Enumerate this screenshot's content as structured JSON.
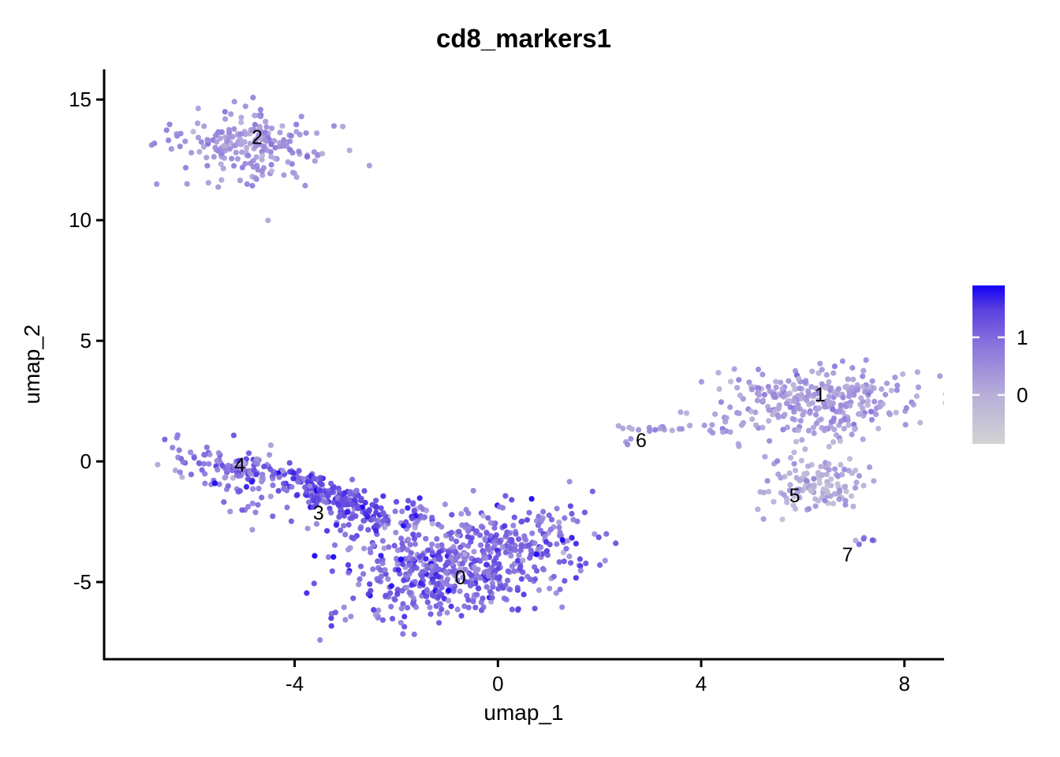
{
  "chart_data": {
    "type": "scatter",
    "title": "cd8_markers1",
    "xlabel": "umap_1",
    "ylabel": "umap_2",
    "xlim": [
      -7.75,
      8.78
    ],
    "ylim": [
      -8.2,
      16.25
    ],
    "x_ticks": [
      -4,
      0,
      4,
      8
    ],
    "y_ticks": [
      15,
      10,
      5,
      0,
      -5
    ],
    "grid": false,
    "legend_position": "right",
    "colorbar": {
      "vmin": -0.85,
      "vmax": 1.9,
      "ticks": [
        1,
        0
      ],
      "low_color": "#D3D3D3",
      "high_color": "#1400F5"
    },
    "palette_stops": [
      [
        0,
        "#D3D3D3"
      ],
      [
        0.31,
        "#B7AED9"
      ],
      [
        0.62,
        "#8B75DC"
      ],
      [
        0.85,
        "#5A3FE0"
      ],
      [
        1,
        "#1400F5"
      ]
    ],
    "cluster_labels": [
      {
        "text": "0",
        "x": -0.74,
        "y": -4.8
      },
      {
        "text": "1",
        "x": 6.34,
        "y": 2.78
      },
      {
        "text": "2",
        "x": -4.74,
        "y": 13.46
      },
      {
        "text": "3",
        "x": -3.53,
        "y": -2.12
      },
      {
        "text": "4",
        "x": -5.08,
        "y": -0.13
      },
      {
        "text": "5",
        "x": 5.84,
        "y": -1.4
      },
      {
        "text": "6",
        "x": 2.82,
        "y": 0.88
      },
      {
        "text": "7",
        "x": 6.88,
        "y": -3.86
      }
    ],
    "point_groups": [
      {
        "cluster": "0",
        "n": 620,
        "cx": -0.75,
        "cy": -4.3,
        "sx": 1.18,
        "sy": 1.02,
        "rho": 0.4,
        "vm": 1.05,
        "vs": 0.38
      },
      {
        "cluster": "0-3-bridge",
        "n": 80,
        "cx": -2.35,
        "cy": -2.7,
        "sx": 0.8,
        "sy": 0.7,
        "rho": 0.2,
        "vm": 1.0,
        "vs": 0.4
      },
      {
        "cluster": "3",
        "n": 190,
        "cx": -3.15,
        "cy": -1.45,
        "sx": 0.62,
        "sy": 0.55,
        "rho": -0.75,
        "vm": 1.35,
        "vs": 0.3
      },
      {
        "cluster": "4",
        "n": 120,
        "cx": -5.15,
        "cy": -0.4,
        "sx": 0.5,
        "sy": 0.48,
        "rho": -0.25,
        "vm": 0.9,
        "vs": 0.42
      },
      {
        "cluster": "4-lower",
        "n": 12,
        "cx": -4.9,
        "cy": -1.9,
        "sx": 0.3,
        "sy": 0.35,
        "rho": 0.0,
        "vm": 0.9,
        "vs": 0.3
      },
      {
        "cluster": "4-tail",
        "n": 4,
        "cx": -6.3,
        "cy": 1.05,
        "sx": 0.12,
        "sy": 0.18,
        "rho": 0.6,
        "vm": 0.8,
        "vs": 0.2
      },
      {
        "cluster": "2",
        "n": 210,
        "cx": -4.95,
        "cy": 13.0,
        "sx": 0.75,
        "sy": 0.75,
        "rho": -0.1,
        "vm": 0.45,
        "vs": 0.25
      },
      {
        "cluster": "1",
        "n": 300,
        "cx": 6.35,
        "cy": 2.55,
        "sx": 1.02,
        "sy": 0.72,
        "rho": 0.05,
        "vm": 0.35,
        "vs": 0.26
      },
      {
        "cluster": "5",
        "n": 125,
        "cx": 6.25,
        "cy": -0.95,
        "sx": 0.55,
        "sy": 0.6,
        "rho": 0.1,
        "vm": 0.08,
        "vs": 0.28
      },
      {
        "cluster": "6",
        "n": 16,
        "cx": 3.0,
        "cy": 1.38,
        "sx": 0.4,
        "sy": 0.07,
        "rho": 0.0,
        "vm": 0.35,
        "vs": 0.2
      },
      {
        "cluster": "6-low",
        "n": 3,
        "cx": 2.55,
        "cy": 0.95,
        "sx": 0.1,
        "sy": 0.15,
        "rho": 0.0,
        "vm": 0.4,
        "vs": 0.15
      },
      {
        "cluster": "6-1-bridge",
        "n": 7,
        "cx": 4.3,
        "cy": 1.32,
        "sx": 0.38,
        "sy": 0.1,
        "rho": 0.0,
        "vm": 0.35,
        "vs": 0.2
      },
      {
        "cluster": "7",
        "n": 6,
        "cx": 7.2,
        "cy": -3.3,
        "sx": 0.13,
        "sy": 0.1,
        "rho": 0.0,
        "vm": 0.7,
        "vs": 0.6
      }
    ],
    "point_radius": 3.6,
    "seed": 1337
  }
}
